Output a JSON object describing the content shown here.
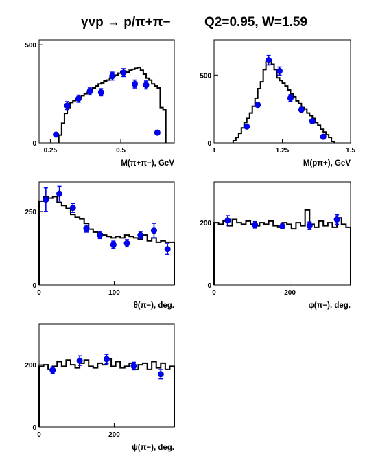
{
  "title": {
    "reaction": "γvp → p/π+π−",
    "kinematics": "Q2=0.95, W=1.59"
  },
  "colors": {
    "points": "#0000ff",
    "histogram": "#000000"
  },
  "chart_data": [
    {
      "type": "scatter",
      "id": "m_pipi",
      "xlabel": "M(π+π−), GeV",
      "xlim": [
        0.21,
        0.69
      ],
      "ylim": [
        0,
        525
      ],
      "xticks": [
        0.25,
        0.5
      ],
      "xtick_labels": [
        "0.25",
        "0.5"
      ],
      "yticks": [
        0,
        500
      ],
      "ytick_labels": [
        "0",
        "500"
      ],
      "histogram": {
        "edges": [
          0.28,
          0.29,
          0.3,
          0.31,
          0.32,
          0.33,
          0.34,
          0.35,
          0.36,
          0.37,
          0.38,
          0.39,
          0.4,
          0.41,
          0.42,
          0.43,
          0.44,
          0.45,
          0.46,
          0.47,
          0.48,
          0.49,
          0.5,
          0.51,
          0.52,
          0.53,
          0.54,
          0.55,
          0.56,
          0.57,
          0.58,
          0.59,
          0.6,
          0.61,
          0.62,
          0.63,
          0.64,
          0.65,
          0.66
        ],
        "values": [
          40,
          100,
          150,
          180,
          205,
          215,
          225,
          230,
          240,
          250,
          255,
          270,
          280,
          290,
          300,
          305,
          315,
          320,
          330,
          340,
          345,
          355,
          365,
          365,
          360,
          370,
          375,
          380,
          385,
          370,
          350,
          330,
          320,
          300,
          290,
          280,
          180,
          170
        ]
      },
      "points": [
        {
          "x": 0.27,
          "y": 42,
          "err": 6
        },
        {
          "x": 0.31,
          "y": 190,
          "err": 20
        },
        {
          "x": 0.35,
          "y": 225,
          "err": 18
        },
        {
          "x": 0.39,
          "y": 262,
          "err": 18
        },
        {
          "x": 0.43,
          "y": 258,
          "err": 18
        },
        {
          "x": 0.47,
          "y": 340,
          "err": 20
        },
        {
          "x": 0.51,
          "y": 358,
          "err": 20
        },
        {
          "x": 0.55,
          "y": 300,
          "err": 20
        },
        {
          "x": 0.59,
          "y": 295,
          "err": 20
        },
        {
          "x": 0.63,
          "y": 52,
          "err": 6
        }
      ]
    },
    {
      "type": "scatter",
      "id": "m_ppip",
      "xlabel": "M(pπ+), GeV",
      "xlim": [
        1.0,
        1.5
      ],
      "ylim": [
        0,
        760
      ],
      "xticks": [
        1.0,
        1.25,
        1.5
      ],
      "xtick_labels": [
        "1",
        "1.25",
        "1.5"
      ],
      "yticks": [
        0,
        500
      ],
      "ytick_labels": [
        "0",
        "500"
      ],
      "histogram": {
        "edges": [
          1.07,
          1.08,
          1.09,
          1.1,
          1.11,
          1.12,
          1.13,
          1.14,
          1.15,
          1.16,
          1.17,
          1.18,
          1.19,
          1.2,
          1.21,
          1.22,
          1.23,
          1.24,
          1.25,
          1.26,
          1.27,
          1.28,
          1.29,
          1.3,
          1.31,
          1.32,
          1.33,
          1.34,
          1.35,
          1.36,
          1.37,
          1.38,
          1.39,
          1.4,
          1.41,
          1.42,
          1.43,
          1.44
        ],
        "values": [
          15,
          40,
          70,
          110,
          150,
          180,
          220,
          270,
          330,
          400,
          450,
          540,
          600,
          610,
          580,
          540,
          480,
          460,
          440,
          420,
          390,
          360,
          340,
          310,
          290,
          260,
          250,
          220,
          200,
          180,
          150,
          130,
          100,
          80,
          60,
          40,
          10
        ]
      },
      "points": [
        {
          "x": 1.12,
          "y": 120,
          "err": 10
        },
        {
          "x": 1.16,
          "y": 280,
          "err": 15
        },
        {
          "x": 1.2,
          "y": 610,
          "err": 35
        },
        {
          "x": 1.24,
          "y": 530,
          "err": 30
        },
        {
          "x": 1.28,
          "y": 330,
          "err": 25
        },
        {
          "x": 1.32,
          "y": 245,
          "err": 15
        },
        {
          "x": 1.36,
          "y": 160,
          "err": 12
        },
        {
          "x": 1.4,
          "y": 45,
          "err": 8
        }
      ]
    },
    {
      "type": "scatter",
      "id": "theta_pi",
      "xlabel": "θ(π−), deg.",
      "xlim": [
        0,
        180
      ],
      "ylim": [
        0,
        350
      ],
      "xticks": [
        0,
        100
      ],
      "xtick_labels": [
        "0",
        "100"
      ],
      "yticks": [
        0,
        250
      ],
      "ytick_labels": [
        "0",
        "250"
      ],
      "histogram": {
        "edges": [
          0,
          6,
          12,
          18,
          24,
          30,
          36,
          42,
          48,
          54,
          60,
          66,
          72,
          78,
          84,
          90,
          96,
          102,
          108,
          114,
          120,
          126,
          132,
          138,
          144,
          150,
          156,
          162,
          168,
          174,
          180
        ],
        "values": [
          285,
          300,
          295,
          300,
          280,
          270,
          260,
          240,
          230,
          225,
          210,
          190,
          180,
          175,
          170,
          165,
          160,
          165,
          160,
          170,
          165,
          160,
          155,
          170,
          150,
          160,
          145,
          150,
          145,
          145
        ]
      },
      "points": [
        {
          "x": 9,
          "y": 290,
          "err": 40
        },
        {
          "x": 27,
          "y": 310,
          "err": 25
        },
        {
          "x": 45,
          "y": 262,
          "err": 15
        },
        {
          "x": 63,
          "y": 192,
          "err": 12
        },
        {
          "x": 81,
          "y": 170,
          "err": 12
        },
        {
          "x": 99,
          "y": 137,
          "err": 12
        },
        {
          "x": 117,
          "y": 142,
          "err": 12
        },
        {
          "x": 135,
          "y": 170,
          "err": 12
        },
        {
          "x": 153,
          "y": 185,
          "err": 25
        },
        {
          "x": 171,
          "y": 122,
          "err": 18
        }
      ]
    },
    {
      "type": "scatter",
      "id": "phi_pi",
      "xlabel": "φ(π−), deg.",
      "xlim": [
        0,
        360
      ],
      "ylim": [
        0,
        330
      ],
      "xticks": [
        0,
        200
      ],
      "xtick_labels": [
        "0",
        "200"
      ],
      "yticks": [
        0,
        200
      ],
      "ytick_labels": [
        "0",
        "200"
      ],
      "histogram": {
        "edges": [
          0,
          12,
          24,
          36,
          48,
          60,
          72,
          84,
          96,
          108,
          120,
          132,
          144,
          156,
          168,
          180,
          192,
          204,
          216,
          228,
          240,
          252,
          264,
          276,
          288,
          300,
          312,
          324,
          336,
          348,
          360
        ],
        "values": [
          200,
          195,
          205,
          190,
          210,
          200,
          195,
          205,
          195,
          190,
          200,
          195,
          205,
          190,
          185,
          200,
          195,
          180,
          200,
          190,
          240,
          195,
          185,
          205,
          190,
          200,
          185,
          215,
          195,
          185
        ]
      },
      "points": [
        {
          "x": 36,
          "y": 207,
          "err": 15
        },
        {
          "x": 108,
          "y": 193,
          "err": 10
        },
        {
          "x": 180,
          "y": 188,
          "err": 8
        },
        {
          "x": 252,
          "y": 190,
          "err": 12
        },
        {
          "x": 324,
          "y": 210,
          "err": 15
        }
      ]
    },
    {
      "type": "scatter",
      "id": "psi_pi",
      "xlabel": "ψ(π−), deg.",
      "xlim": [
        0,
        360
      ],
      "ylim": [
        0,
        330
      ],
      "xticks": [
        0,
        200
      ],
      "xtick_labels": [
        "0",
        "200"
      ],
      "yticks": [
        0,
        200
      ],
      "ytick_labels": [
        "0",
        "200"
      ],
      "histogram": {
        "edges": [
          0,
          12,
          24,
          36,
          48,
          60,
          72,
          84,
          96,
          108,
          120,
          132,
          144,
          156,
          168,
          180,
          192,
          204,
          216,
          228,
          240,
          252,
          264,
          276,
          288,
          300,
          312,
          324,
          336,
          348,
          360
        ],
        "values": [
          195,
          200,
          185,
          195,
          210,
          195,
          215,
          200,
          190,
          205,
          215,
          195,
          190,
          205,
          200,
          220,
          195,
          210,
          190,
          195,
          205,
          185,
          200,
          205,
          185,
          210,
          190,
          205,
          185,
          195
        ]
      },
      "points": [
        {
          "x": 36,
          "y": 183,
          "err": 10
        },
        {
          "x": 108,
          "y": 213,
          "err": 15
        },
        {
          "x": 180,
          "y": 218,
          "err": 15
        },
        {
          "x": 252,
          "y": 196,
          "err": 12
        },
        {
          "x": 324,
          "y": 170,
          "err": 15
        }
      ]
    }
  ]
}
